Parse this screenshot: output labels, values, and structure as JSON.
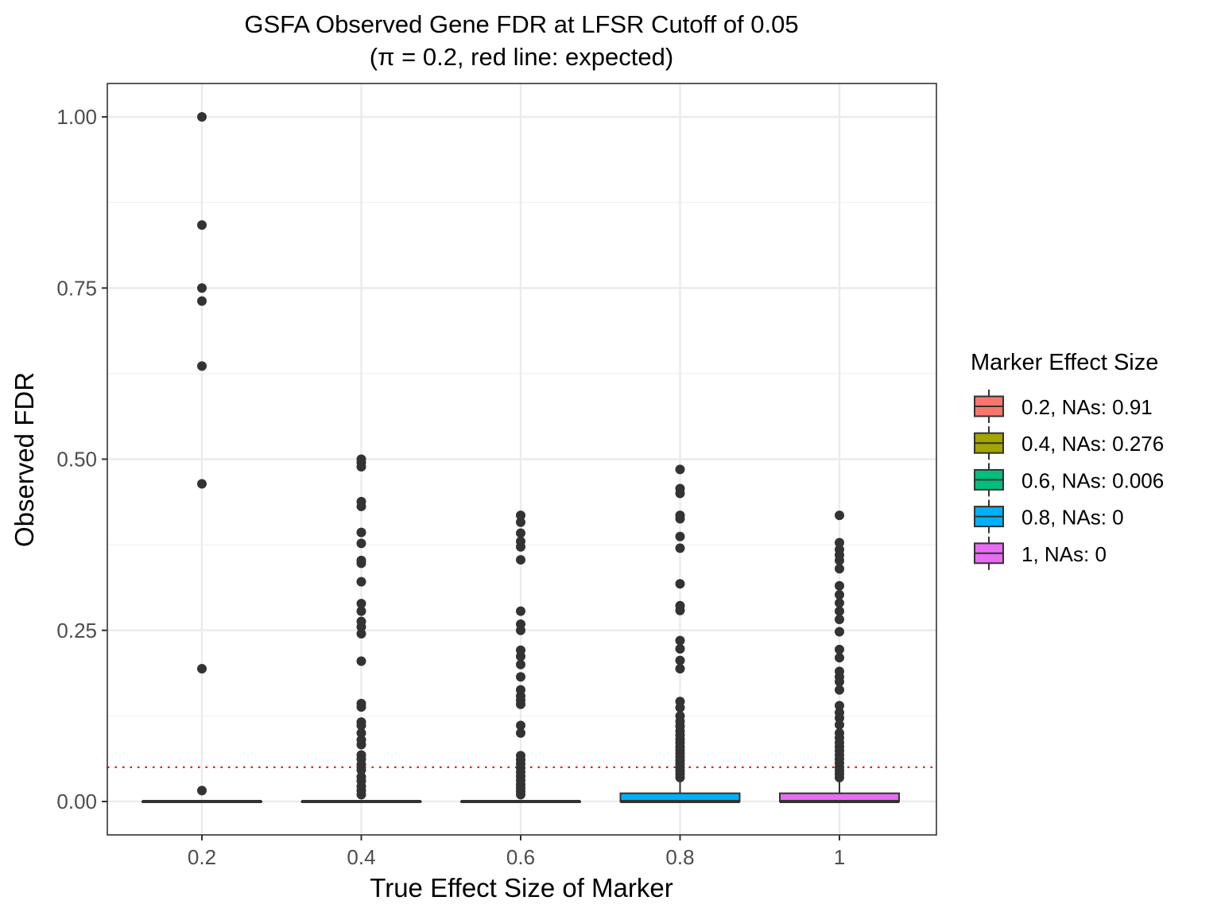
{
  "chart_data": {
    "type": "box",
    "title": "GSFA Observed Gene FDR at LFSR Cutoff of 0.05",
    "subtitle": "(π = 0.2, red line: expected)",
    "xlabel": "True Effect Size of Marker",
    "ylabel": "Observed FDR",
    "categories": [
      "0.2",
      "0.4",
      "0.6",
      "0.8",
      "1"
    ],
    "y_ticks": [
      "0.00",
      "0.25",
      "0.50",
      "0.75",
      "1.00"
    ],
    "y_tick_values": [
      0,
      0.25,
      0.5,
      0.75,
      1.0
    ],
    "ylim": [
      -0.05,
      1.05
    ],
    "grid": true,
    "reference_line": {
      "y": 0.05,
      "color": "#ff0000",
      "style": "dotted"
    },
    "legend": {
      "title": "Marker Effect Size",
      "placement": "right",
      "entries": [
        {
          "label": "0.2, NAs: 0.91",
          "color": "#F8766D"
        },
        {
          "label": "0.4, NAs: 0.276",
          "color": "#A3A500"
        },
        {
          "label": "0.6, NAs: 0.006",
          "color": "#00BF7D"
        },
        {
          "label": "0.8, NAs: 0",
          "color": "#00B0F6"
        },
        {
          "label": "1, NAs: 0",
          "color": "#E76BF3"
        }
      ]
    },
    "series": [
      {
        "category": "0.2",
        "color": "#F8766D",
        "min": 0,
        "q1": 0,
        "median": 0,
        "q3": 0,
        "max": 0,
        "outliers": [
          1.0,
          0.842,
          0.75,
          0.731,
          0.636,
          0.464,
          0.194,
          0.016
        ]
      },
      {
        "category": "0.4",
        "color": "#A3A500",
        "min": 0,
        "q1": 0,
        "median": 0,
        "q3": 0,
        "max": 0,
        "outliers": [
          0.5,
          0.495,
          0.489,
          0.438,
          0.431,
          0.393,
          0.377,
          0.352,
          0.348,
          0.321,
          0.289,
          0.278,
          0.263,
          0.255,
          0.245,
          0.205,
          0.143,
          0.138,
          0.116,
          0.111,
          0.1,
          0.09,
          0.083,
          0.068,
          0.062,
          0.054,
          0.046,
          0.036,
          0.03,
          0.022,
          0.016,
          0.01
        ]
      },
      {
        "category": "0.6",
        "color": "#00BF7D",
        "min": 0,
        "q1": 0,
        "median": 0,
        "q3": 0,
        "max": 0,
        "outliers": [
          0.418,
          0.408,
          0.392,
          0.38,
          0.372,
          0.353,
          0.278,
          0.259,
          0.25,
          0.221,
          0.212,
          0.2,
          0.182,
          0.163,
          0.154,
          0.148,
          0.142,
          0.111,
          0.1,
          0.067,
          0.061,
          0.055,
          0.049,
          0.043,
          0.037,
          0.031,
          0.025,
          0.02,
          0.015,
          0.01
        ]
      },
      {
        "category": "0.8",
        "color": "#00B0F6",
        "min": 0,
        "q1": 0,
        "median": 0,
        "q3": 0.012,
        "max": 0.03,
        "outliers": [
          0.485,
          0.457,
          0.45,
          0.418,
          0.413,
          0.387,
          0.37,
          0.318,
          0.286,
          0.279,
          0.235,
          0.223,
          0.206,
          0.194,
          0.146,
          0.137,
          0.125,
          0.117,
          0.11,
          0.103,
          0.097,
          0.091,
          0.086,
          0.08,
          0.075,
          0.07,
          0.065,
          0.06,
          0.055,
          0.05,
          0.045,
          0.04,
          0.035
        ]
      },
      {
        "category": "1",
        "color": "#E76BF3",
        "min": 0,
        "q1": 0,
        "median": 0,
        "q3": 0.012,
        "max": 0.03,
        "outliers": [
          0.418,
          0.378,
          0.368,
          0.36,
          0.352,
          0.34,
          0.315,
          0.302,
          0.29,
          0.278,
          0.266,
          0.248,
          0.222,
          0.21,
          0.19,
          0.182,
          0.175,
          0.163,
          0.14,
          0.13,
          0.122,
          0.112,
          0.1,
          0.093,
          0.086,
          0.08,
          0.074,
          0.068,
          0.062,
          0.056,
          0.05,
          0.045,
          0.04,
          0.035
        ]
      }
    ]
  }
}
